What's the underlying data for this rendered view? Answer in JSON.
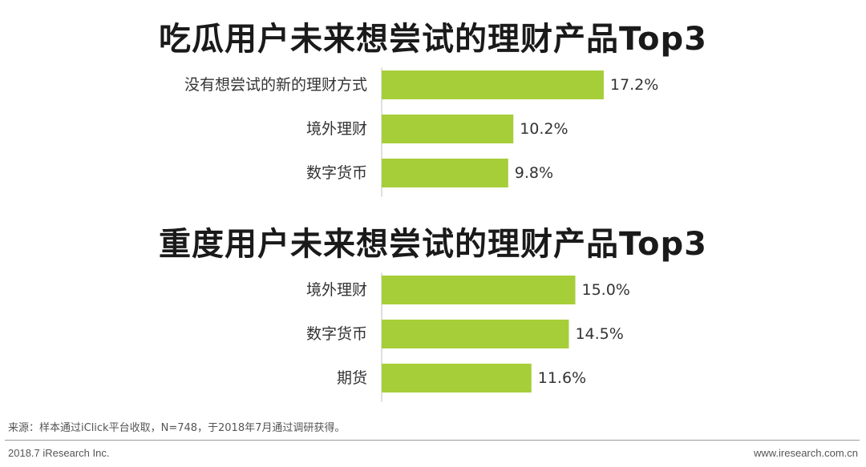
{
  "chart_data": [
    {
      "type": "bar",
      "orientation": "horizontal",
      "title": "吃瓜用户未来想尝试的理财产品Top3",
      "categories": [
        "没有想尝试的新的理财方式",
        "境外理财",
        "数字货币"
      ],
      "values": [
        17.2,
        10.2,
        9.8
      ],
      "data_labels": [
        "17.2%",
        "10.2%",
        "9.8%"
      ],
      "unit": "%",
      "xlim": [
        0,
        20
      ],
      "grid": false,
      "bar_color": "#a6ce39"
    },
    {
      "type": "bar",
      "orientation": "horizontal",
      "title": "重度用户未来想尝试的理财产品Top3",
      "categories": [
        "境外理财",
        "数字货币",
        "期货"
      ],
      "values": [
        15.0,
        14.5,
        11.6
      ],
      "data_labels": [
        "15.0%",
        "14.5%",
        "11.6%"
      ],
      "unit": "%",
      "xlim": [
        0,
        20
      ],
      "grid": false,
      "bar_color": "#a6ce39"
    }
  ],
  "source_note": "来源：样本通过iClick平台收取，N=748，于2018年7月通过调研获得。",
  "footer": {
    "left": "2018.7 iResearch Inc.",
    "right": "www.iresearch.com.cn"
  },
  "colors": {
    "bar": "#a6ce39",
    "axis": "#bfbfbf",
    "text": "#333333"
  }
}
